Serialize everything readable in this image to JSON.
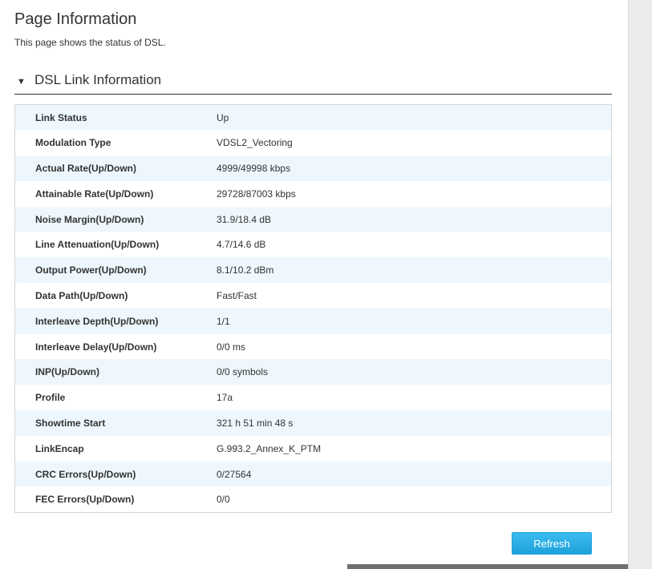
{
  "header": {
    "title": "Page Information",
    "description": "This page shows the status of DSL."
  },
  "section": {
    "toggle_icon": "triangle-down-icon",
    "toggle_glyph": "▼",
    "title": "DSL Link Information"
  },
  "rows": [
    {
      "label": "Link Status",
      "value": "Up"
    },
    {
      "label": "Modulation Type",
      "value": "VDSL2_Vectoring"
    },
    {
      "label": "Actual Rate(Up/Down)",
      "value": "4999/49998 kbps"
    },
    {
      "label": "Attainable Rate(Up/Down)",
      "value": "29728/87003 kbps"
    },
    {
      "label": "Noise Margin(Up/Down)",
      "value": "31.9/18.4 dB"
    },
    {
      "label": "Line Attenuation(Up/Down)",
      "value": "4.7/14.6 dB"
    },
    {
      "label": "Output Power(Up/Down)",
      "value": "8.1/10.2 dBm"
    },
    {
      "label": "Data Path(Up/Down)",
      "value": "Fast/Fast"
    },
    {
      "label": "Interleave Depth(Up/Down)",
      "value": "1/1"
    },
    {
      "label": "Interleave Delay(Up/Down)",
      "value": "0/0 ms"
    },
    {
      "label": "INP(Up/Down)",
      "value": "0/0 symbols"
    },
    {
      "label": "Profile",
      "value": "17a"
    },
    {
      "label": "Showtime Start",
      "value": "321 h 51 min 48 s"
    },
    {
      "label": "LinkEncap",
      "value": "G.993.2_Annex_K_PTM"
    },
    {
      "label": "CRC Errors(Up/Down)",
      "value": "0/27564"
    },
    {
      "label": "FEC Errors(Up/Down)",
      "value": "0/0"
    }
  ],
  "actions": {
    "refresh_label": "Refresh",
    "refresh_color": "#2aaee6"
  }
}
